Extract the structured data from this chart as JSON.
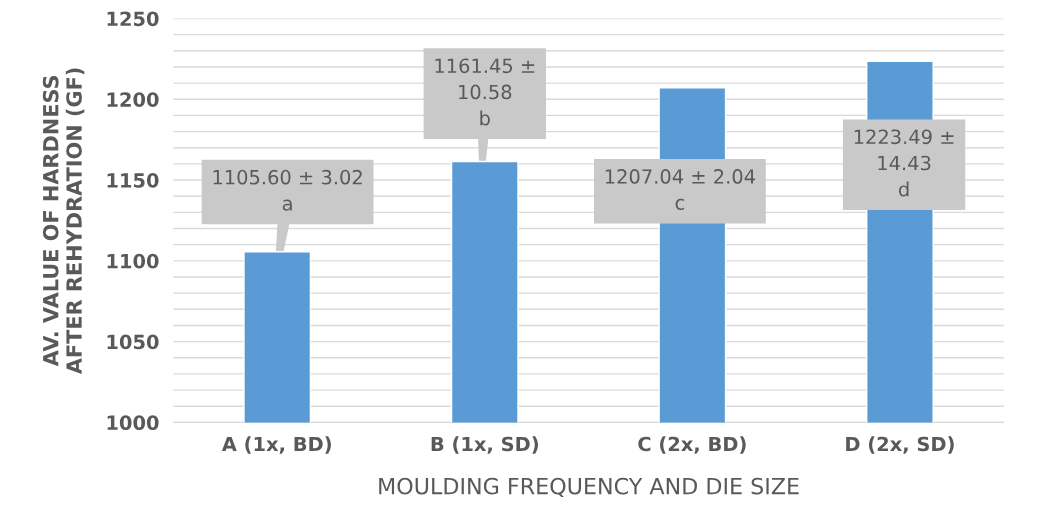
{
  "chart_data": {
    "type": "bar",
    "xlabel": "MOULDING FREQUENCY AND DIE SIZE",
    "ylabel": "AV. VALUE OF HARDNESS\nAFTER REHYDRATION (GF)",
    "categories": [
      "A (1x, BD)",
      "B (1x, SD)",
      "C (2x, BD)",
      "D (2x, SD)"
    ],
    "values": [
      1105.6,
      1161.45,
      1207.04,
      1223.49
    ],
    "value_labels": [
      "1105.60 ± 3.02\na",
      "1161.45 ±\n10.58\nb",
      "1207.04 ± 2.04\nc",
      "1223.49 ±\n14.43\nd"
    ],
    "color": "#5b9bd5",
    "ylim": [
      1000,
      1250
    ],
    "yticks": [
      1000,
      {
        "value": 1010,
        "label": null
      },
      {
        "value": 1020,
        "label": null
      },
      {
        "value": 1030,
        "label": null
      },
      {
        "value": 1040,
        "label": null
      },
      1050,
      {
        "value": 1060,
        "label": null
      },
      {
        "value": 1070,
        "label": null
      },
      {
        "value": 1080,
        "label": null
      },
      {
        "value": 1090,
        "label": null
      },
      1100,
      {
        "value": 1110,
        "label": null
      },
      {
        "value": 1120,
        "label": null
      },
      {
        "value": 1130,
        "label": null
      },
      {
        "value": 1140,
        "label": null
      },
      1150,
      {
        "value": 1160,
        "label": null
      },
      {
        "value": 1170,
        "label": null
      },
      {
        "value": 1180,
        "label": null
      },
      {
        "value": 1190,
        "label": null
      },
      1200,
      {
        "value": 1210,
        "label": null
      },
      {
        "value": 1220,
        "label": null
      },
      {
        "value": 1230,
        "label": null
      },
      {
        "value": 1240,
        "label": null
      },
      1250
    ],
    "grid": "y"
  }
}
